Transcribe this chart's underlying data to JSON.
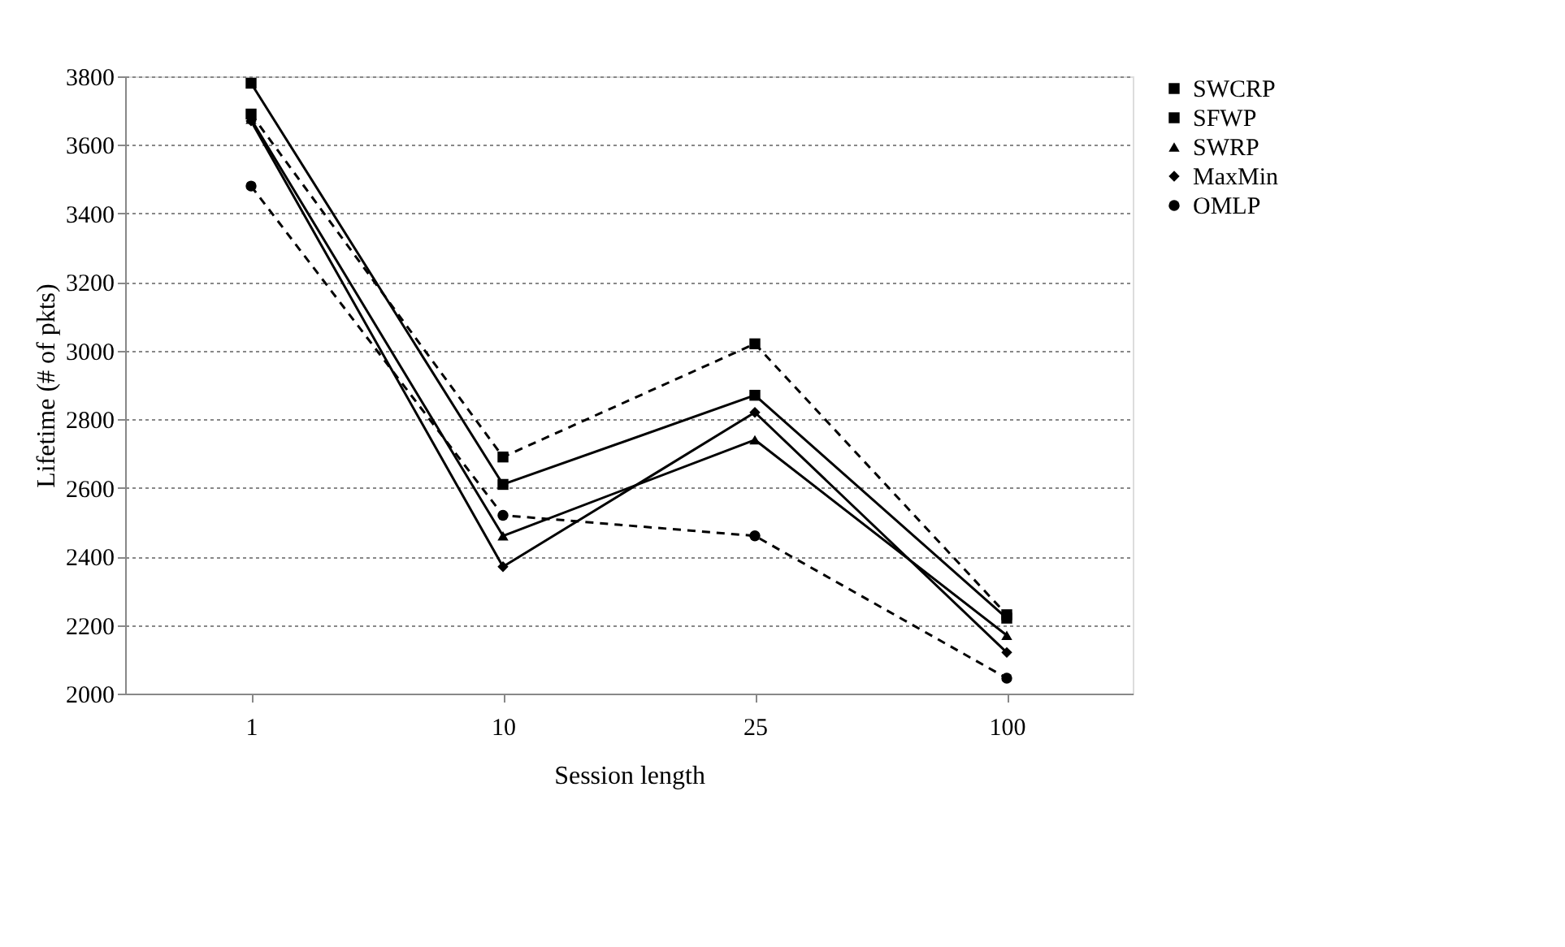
{
  "chart_data": {
    "type": "line",
    "xlabel": "Session length",
    "ylabel": "Lifetime (# of pkts)",
    "categories": [
      "1",
      "10",
      "25",
      "100"
    ],
    "ylim": [
      2000,
      3800
    ],
    "yticks": [
      2000,
      2200,
      2400,
      2600,
      2800,
      3000,
      3200,
      3400,
      3600,
      3800
    ],
    "grid": "y",
    "legend": "right",
    "series": [
      {
        "name": "SWCRP",
        "color": "#000000",
        "marker": "square",
        "line_style": "solid",
        "values": [
          3780,
          2610,
          2870,
          2220
        ]
      },
      {
        "name": "SFWP",
        "color": "#000000",
        "marker": "square",
        "line_style": "dashed",
        "values": [
          3690,
          2690,
          3020,
          2230
        ]
      },
      {
        "name": "SWRP",
        "color": "#000000",
        "marker": "triangle",
        "line_style": "solid",
        "values": [
          3675,
          2460,
          2740,
          2170
        ]
      },
      {
        "name": "MaxMin",
        "color": "#000000",
        "marker": "diamond",
        "line_style": "solid",
        "values": [
          3670,
          2370,
          2820,
          2120
        ]
      },
      {
        "name": "OMLP",
        "color": "#000000",
        "marker": "circle",
        "line_style": "dashed",
        "values": [
          3480,
          2520,
          2460,
          2045
        ]
      }
    ]
  }
}
